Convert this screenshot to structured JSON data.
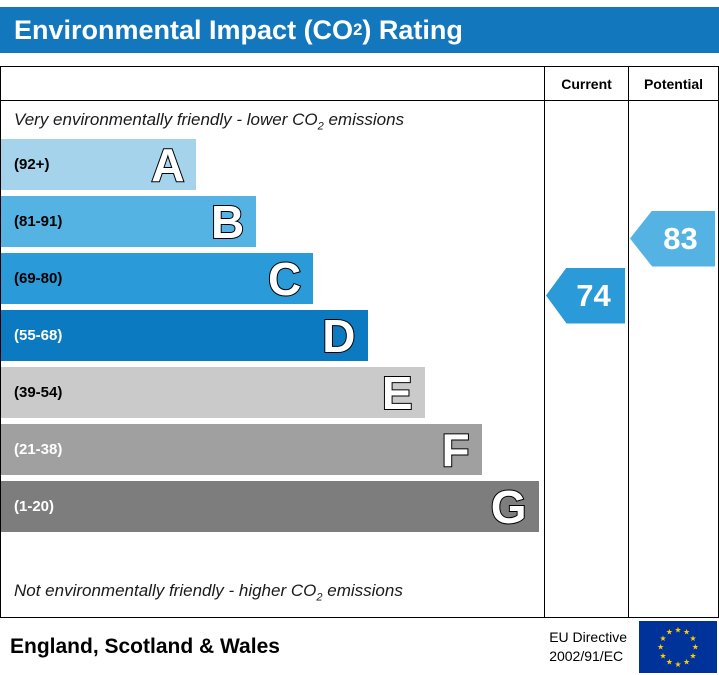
{
  "title": {
    "pre": "Environmental Impact (CO",
    "sub": "2",
    "post": ") Rating"
  },
  "columns": {
    "current": "Current",
    "potential": "Potential"
  },
  "notes": {
    "top": {
      "pre": "Very environmentally friendly - lower CO",
      "sub": "2",
      "post": " emissions"
    },
    "bottom": {
      "pre": "Not environmentally friendly - higher CO",
      "sub": "2",
      "post": " emissions"
    }
  },
  "bands": [
    {
      "letter": "A",
      "range": "(92+)",
      "color": "#a5d3ec",
      "width_pct": 36,
      "text_color": "#000000"
    },
    {
      "letter": "B",
      "range": "(81-91)",
      "color": "#54b3e2",
      "width_pct": 47,
      "text_color": "#000000"
    },
    {
      "letter": "C",
      "range": "(69-80)",
      "color": "#2b9ad8",
      "width_pct": 57.5,
      "text_color": "#000000"
    },
    {
      "letter": "D",
      "range": "(55-68)",
      "color": "#0c7ac0",
      "width_pct": 67.5,
      "text_color": "#ffffff"
    },
    {
      "letter": "E",
      "range": "(39-54)",
      "color": "#cacaca",
      "width_pct": 78,
      "text_color": "#000000"
    },
    {
      "letter": "F",
      "range": "(21-38)",
      "color": "#a0a0a0",
      "width_pct": 88.5,
      "text_color": "#ffffff"
    },
    {
      "letter": "G",
      "range": "(1-20)",
      "color": "#7d7d7d",
      "width_pct": 99,
      "text_color": "#ffffff"
    }
  ],
  "ratings": {
    "current": {
      "value": "74",
      "color": "#2b9ad8",
      "band_index": 2
    },
    "potential": {
      "value": "83",
      "color": "#54b3e2",
      "band_index": 1
    }
  },
  "footer": {
    "region": "England, Scotland & Wales",
    "directive_line1": "EU Directive",
    "directive_line2": "2002/91/EC"
  },
  "chart_data": {
    "type": "bar",
    "title": "Environmental Impact (CO2) Rating",
    "categories": [
      "A (92+)",
      "B (81-91)",
      "C (69-80)",
      "D (55-68)",
      "E (39-54)",
      "F (21-38)",
      "G (1-20)"
    ],
    "band_colors": [
      "#a5d3ec",
      "#54b3e2",
      "#2b9ad8",
      "#0c7ac0",
      "#cacaca",
      "#a0a0a0",
      "#7d7d7d"
    ],
    "bar_width_pct": [
      36,
      47,
      57.5,
      67.5,
      78,
      88.5,
      99
    ],
    "series": [
      {
        "name": "Current",
        "value": 74,
        "band": "C"
      },
      {
        "name": "Potential",
        "value": 83,
        "band": "B"
      }
    ],
    "top_annotation": "Very environmentally friendly - lower CO2 emissions",
    "bottom_annotation": "Not environmentally friendly - higher CO2 emissions",
    "footer_left": "England, Scotland & Wales",
    "footer_right": "EU Directive 2002/91/EC",
    "legend_position": "none",
    "grid": false
  }
}
